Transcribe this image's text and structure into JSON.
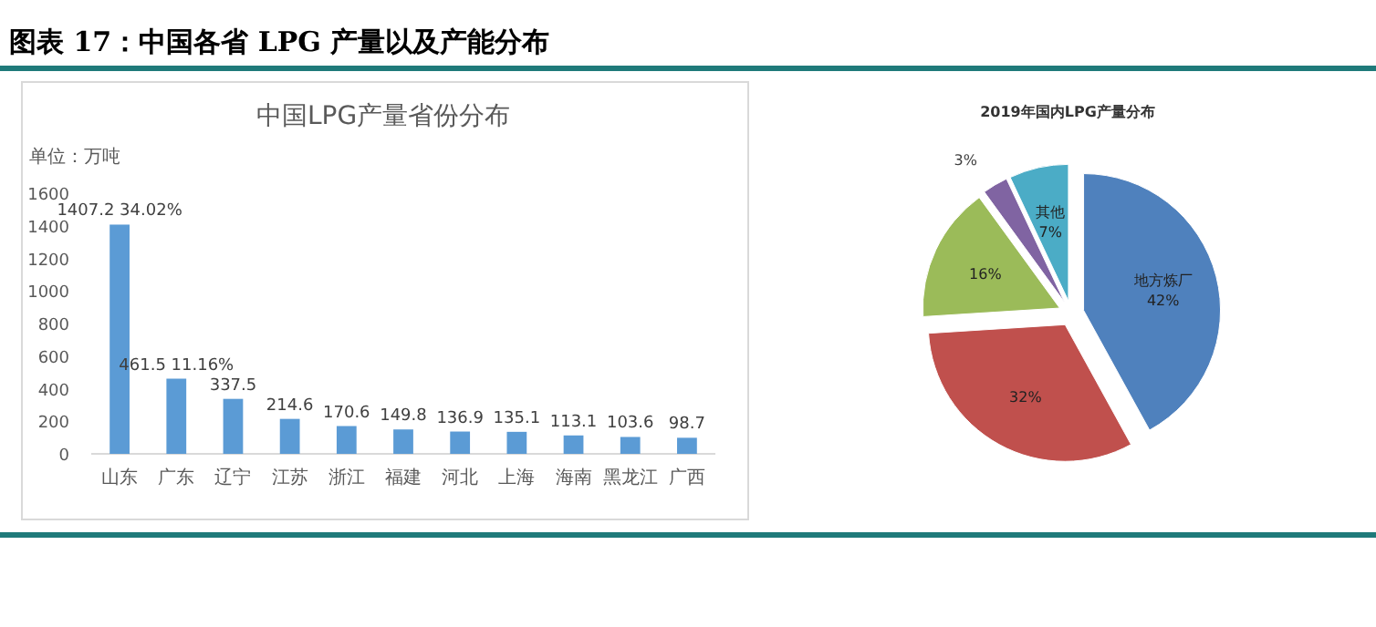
{
  "chart_data": [
    {
      "type": "bar",
      "title": "中国LPG产量省份分布",
      "ylabel": "单位：万吨",
      "annotations": [
        "图表 17：中国各省 LPG 产量以及产能分布"
      ],
      "categories": [
        "山东",
        "广东",
        "辽宁",
        "江苏",
        "浙江",
        "福建",
        "河北",
        "上海",
        "海南",
        "黑龙江",
        "广西"
      ],
      "values": [
        1407.2,
        461.5,
        337.5,
        214.6,
        170.6,
        149.8,
        136.9,
        135.1,
        113.1,
        103.6,
        98.7
      ],
      "value_labels": [
        "1407.2 34.02%",
        "461.5 11.16%",
        "337.5",
        "214.6",
        "170.6",
        "149.8",
        "136.9",
        "135.1",
        "113.1",
        "103.6",
        "98.7"
      ],
      "color": "#5b9bd5",
      "ylim": [
        0,
        1600
      ],
      "yticks": [
        0,
        200,
        400,
        600,
        800,
        1000,
        1200,
        1400,
        1600
      ]
    },
    {
      "type": "pie",
      "title": "2019年国内LPG产量分布",
      "categories": [
        "地方炼厂",
        null,
        null,
        null,
        "其他"
      ],
      "values": [
        42,
        32,
        16,
        3,
        7
      ],
      "colors": [
        "#4f81bd",
        "#c0504d",
        "#9bbb59",
        "#8064a2",
        "#4bacc6"
      ],
      "value_labels": [
        "42%",
        "32%",
        "16%",
        "3%",
        "7%"
      ]
    }
  ]
}
